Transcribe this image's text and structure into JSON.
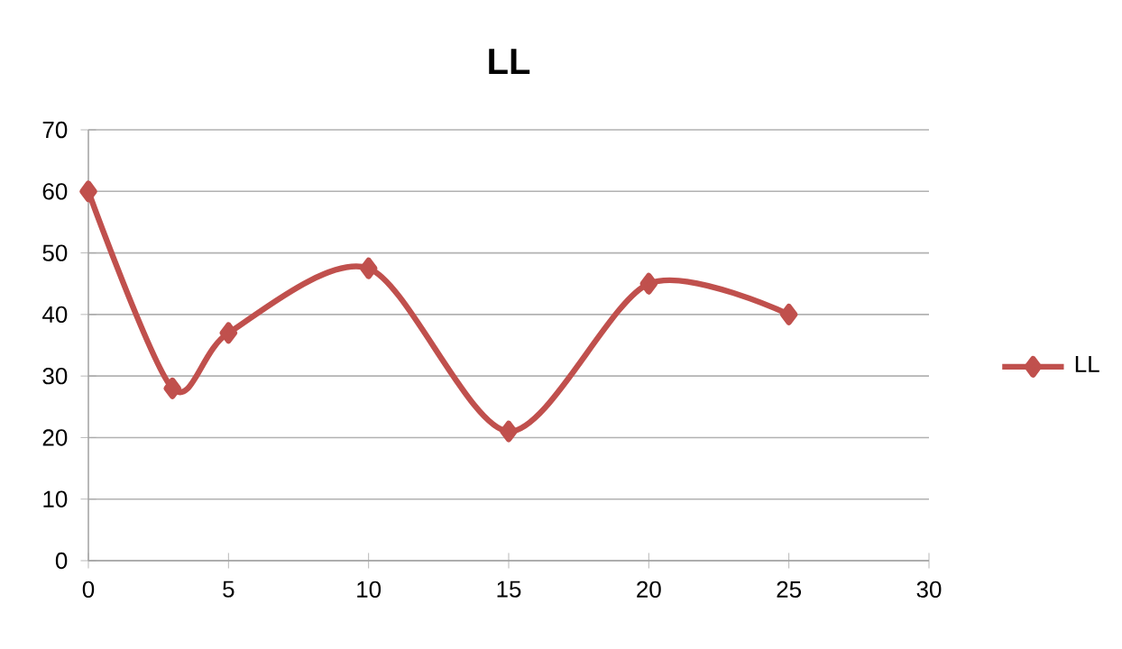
{
  "chart_data": {
    "type": "line",
    "title": "LL",
    "x": [
      0,
      3,
      5,
      10,
      15,
      20,
      25
    ],
    "series": [
      {
        "name": "LL",
        "color": "#c0504d",
        "values": [
          60,
          28,
          37,
          47.5,
          21,
          45,
          40
        ]
      }
    ],
    "xlim": [
      0,
      30
    ],
    "xticks": [
      0,
      5,
      10,
      15,
      20,
      25,
      30
    ],
    "ylim": [
      0,
      70
    ],
    "yticks": [
      0,
      10,
      20,
      30,
      40,
      50,
      60,
      70
    ],
    "grid": "y",
    "legend": "right",
    "marker": "diamond",
    "line_style": "solid"
  }
}
